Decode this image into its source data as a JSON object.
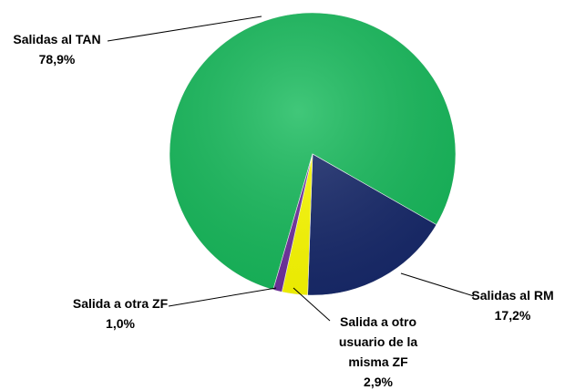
{
  "chart_data": {
    "type": "pie",
    "categories": [
      "Salidas al TAN",
      "Salidas al RM",
      "Salida a otro usuario de la misma ZF",
      "Salida a otra ZF"
    ],
    "values": [
      78.9,
      17.2,
      2.9,
      1.0
    ],
    "value_labels": [
      "78,9%",
      "17,2%",
      "2,9%",
      "1,0%"
    ],
    "colors": [
      "#17bb5c",
      "#17296b",
      "#ffff00",
      "#7030a0"
    ]
  }
}
